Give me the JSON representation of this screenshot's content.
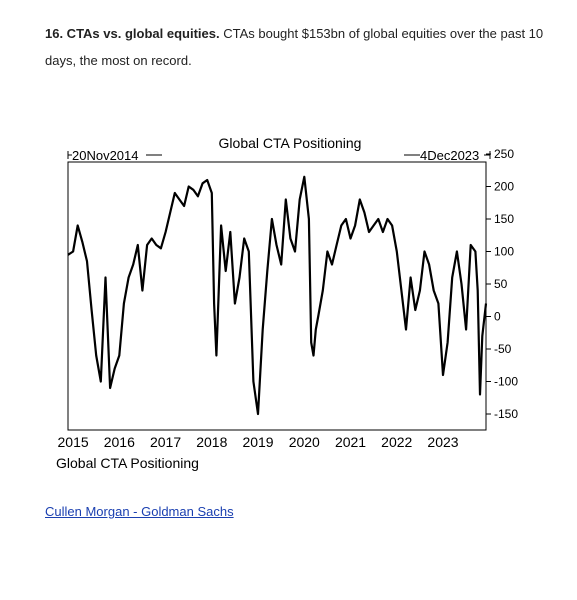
{
  "caption": {
    "heading": "16. CTAs vs. global equities.",
    "body": "CTAs bought $153bn of global equities over the past 10 days, the most on record."
  },
  "source": {
    "label": "Cullen Morgan - Goldman Sachs"
  },
  "chart_data": {
    "type": "line",
    "title": "Global CTA Positioning",
    "start_label": "20Nov2014",
    "end_label": "4Dec2023",
    "bottom_label": "Global CTA Positioning",
    "x_ticks": [
      "2015",
      "2016",
      "2017",
      "2018",
      "2019",
      "2020",
      "2021",
      "2022",
      "2023"
    ],
    "y_ticks": [
      250,
      200,
      150,
      100,
      50,
      0,
      -50,
      -100,
      -150
    ],
    "ylim": [
      -150,
      250
    ],
    "xlim": [
      2014.89,
      2023.93
    ],
    "grid": false,
    "line_color": "#000000",
    "series": [
      {
        "x": [
          2014.89,
          2015.0,
          2015.1,
          2015.2,
          2015.3,
          2015.4,
          2015.5,
          2015.6,
          2015.7,
          2015.8,
          2015.9,
          2016.0,
          2016.1,
          2016.2,
          2016.3,
          2016.4,
          2016.5,
          2016.6,
          2016.7,
          2016.8,
          2016.9,
          2017.0,
          2017.1,
          2017.2,
          2017.3,
          2017.4,
          2017.5,
          2017.6,
          2017.7,
          2017.8,
          2017.9,
          2018.0,
          2018.05,
          2018.1,
          2018.2,
          2018.3,
          2018.4,
          2018.5,
          2018.6,
          2018.7,
          2018.8,
          2018.9,
          2019.0,
          2019.1,
          2019.2,
          2019.3,
          2019.4,
          2019.5,
          2019.6,
          2019.7,
          2019.8,
          2019.9,
          2020.0,
          2020.1,
          2020.15,
          2020.2,
          2020.25,
          2020.3,
          2020.4,
          2020.5,
          2020.6,
          2020.7,
          2020.8,
          2020.9,
          2021.0,
          2021.1,
          2021.2,
          2021.3,
          2021.4,
          2021.5,
          2021.6,
          2021.7,
          2021.8,
          2021.9,
          2022.0,
          2022.1,
          2022.2,
          2022.3,
          2022.4,
          2022.5,
          2022.6,
          2022.7,
          2022.8,
          2022.9,
          2023.0,
          2023.1,
          2023.2,
          2023.3,
          2023.4,
          2023.5,
          2023.6,
          2023.7,
          2023.75,
          2023.8,
          2023.85,
          2023.93
        ],
        "values": [
          95,
          100,
          140,
          115,
          85,
          10,
          -60,
          -100,
          60,
          -110,
          -80,
          -60,
          20,
          60,
          80,
          110,
          40,
          110,
          120,
          110,
          105,
          130,
          160,
          190,
          180,
          170,
          200,
          195,
          185,
          205,
          210,
          190,
          20,
          -60,
          140,
          70,
          130,
          20,
          60,
          120,
          100,
          -100,
          -150,
          -20,
          70,
          150,
          110,
          80,
          180,
          120,
          100,
          180,
          215,
          150,
          -40,
          -60,
          -20,
          0,
          40,
          100,
          80,
          110,
          140,
          150,
          120,
          140,
          180,
          160,
          130,
          140,
          150,
          130,
          150,
          140,
          100,
          40,
          -20,
          60,
          10,
          40,
          100,
          80,
          40,
          20,
          -90,
          -40,
          60,
          100,
          50,
          -20,
          110,
          100,
          40,
          -120,
          -30,
          20
        ]
      }
    ]
  }
}
